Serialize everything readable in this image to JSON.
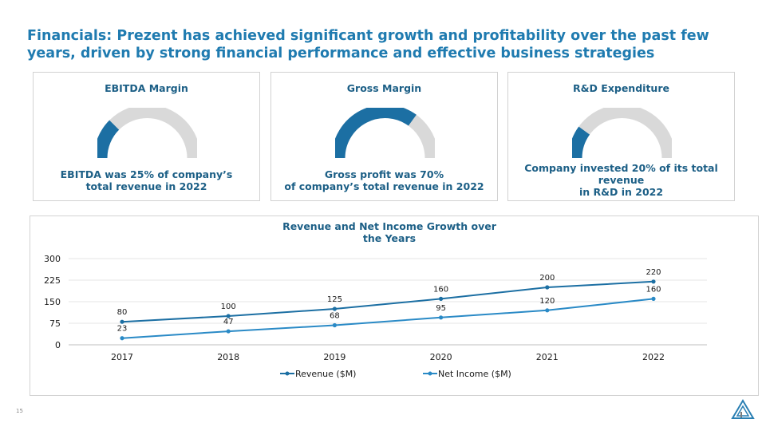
{
  "title": "Financials: Prezent has achieved significant growth and profitability over the past few years, driven by strong financial performance and effective business strategies",
  "colors": {
    "primary": "#1c6fa3",
    "light_series": "#2a8ac6",
    "gauge_bg": "#d9d9d9"
  },
  "cards": [
    {
      "title": "EBITDA Margin",
      "percent": 25,
      "text_lines": [
        "EBITDA was 25% of company’s",
        "total revenue in 2022"
      ]
    },
    {
      "title": "Gross Margin",
      "percent": 70,
      "text_lines": [
        "Gross profit was 70%",
        "of company’s total revenue in 2022"
      ]
    },
    {
      "title": "R&D Expenditure",
      "percent": 20,
      "text_lines": [
        "Company invested 20% of its total",
        "revenue",
        "in R&D in 2022"
      ]
    }
  ],
  "chart_data": {
    "type": "line",
    "title_lines": [
      "Revenue and Net Income Growth over",
      "the Years"
    ],
    "categories": [
      "2017",
      "2018",
      "2019",
      "2020",
      "2021",
      "2022"
    ],
    "series": [
      {
        "name": "Revenue ($M)",
        "values": [
          80,
          100,
          125,
          160,
          200,
          220
        ]
      },
      {
        "name": "Net Income ($M)",
        "values": [
          23,
          47,
          68,
          95,
          120,
          160
        ]
      }
    ],
    "ylim": [
      0,
      300
    ],
    "yticks": [
      "0",
      "75",
      "150",
      "225",
      "300"
    ],
    "grid": true,
    "legend": "bottom"
  },
  "footer": {
    "page_number": "15",
    "logo_icon": "triangle-logo-icon"
  }
}
